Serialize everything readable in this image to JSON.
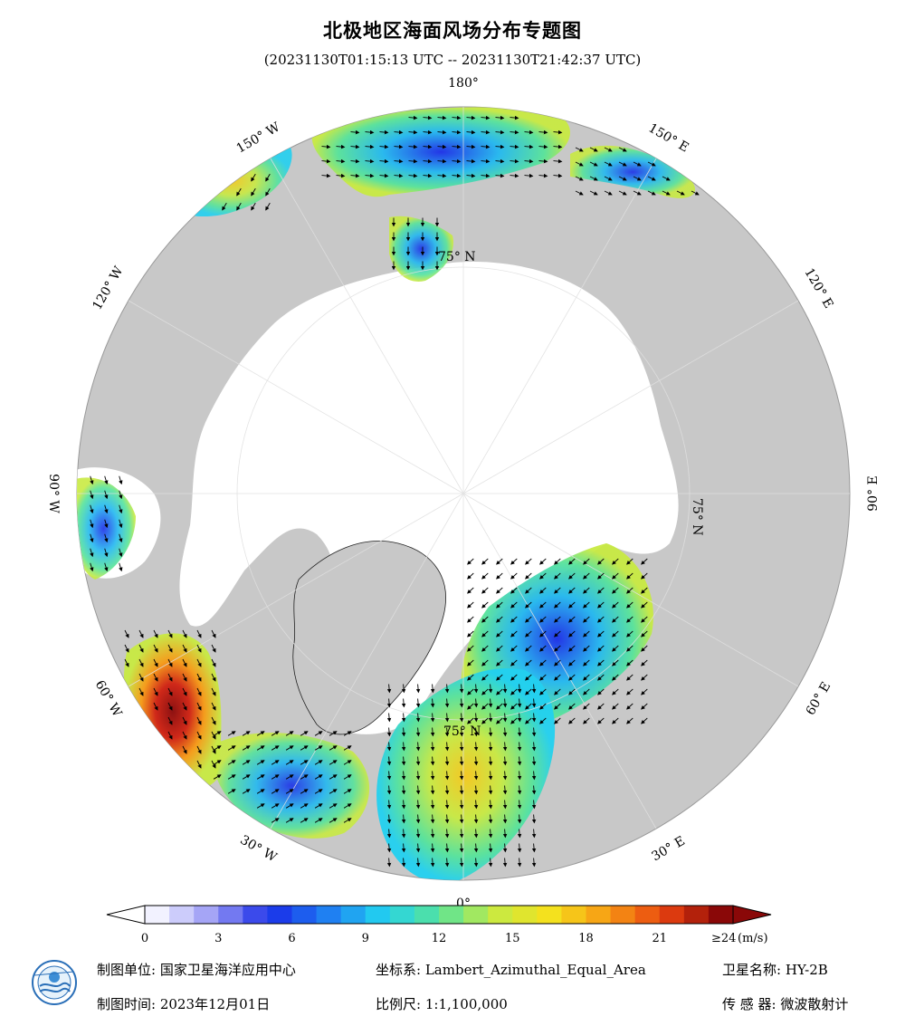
{
  "header": {
    "title": "北极地区海面风场分布专题图",
    "subtitle": "(20231130T01:15:13 UTC -- 20231130T21:42:37 UTC)"
  },
  "map": {
    "longitude_labels": [
      {
        "text": "180°",
        "lon": 180
      },
      {
        "text": "150° E",
        "lon": 150
      },
      {
        "text": "120° E",
        "lon": 120
      },
      {
        "text": "90° E",
        "lon": 90
      },
      {
        "text": "60° E",
        "lon": 60
      },
      {
        "text": "30° E",
        "lon": 30
      },
      {
        "text": "0°",
        "lon": 0
      },
      {
        "text": "30° W",
        "lon": -30
      },
      {
        "text": "60° W",
        "lon": -60
      },
      {
        "text": "90° W",
        "lon": -90
      },
      {
        "text": "120° W",
        "lon": -120
      },
      {
        "text": "150° W",
        "lon": -150
      }
    ],
    "latitude_label": "75° N",
    "colors": {
      "land": "#c8c8c8",
      "ice": "#ffffff",
      "background": "#ffffff"
    }
  },
  "colorbar": {
    "ticks": [
      "0",
      "3",
      "6",
      "9",
      "12",
      "15",
      "18",
      "21"
    ],
    "max_label": "≥24",
    "unit": "(m/s)",
    "stops": [
      "#f2f2ff",
      "#9a9af5",
      "#1a2ee8",
      "#1f7cf2",
      "#22d0f0",
      "#57e39a",
      "#c8ea42",
      "#f6e11c",
      "#f79a14",
      "#e84210",
      "#8a0808"
    ]
  },
  "footer": {
    "unit_label": "制图单位:",
    "unit_value": "国家卫星海洋应用中心",
    "time_label": "制图时间:",
    "time_value": "2023年12月01日",
    "crs_label": "坐标系:",
    "crs_value": "Lambert_Azimuthal_Equal_Area",
    "scale_label": "比例尺:",
    "scale_value": "1:1,100,000",
    "satellite_label": "卫星名称:",
    "satellite_value": "HY-2B",
    "sensor_label": "传 感 器:",
    "sensor_value": "微波散射计"
  }
}
